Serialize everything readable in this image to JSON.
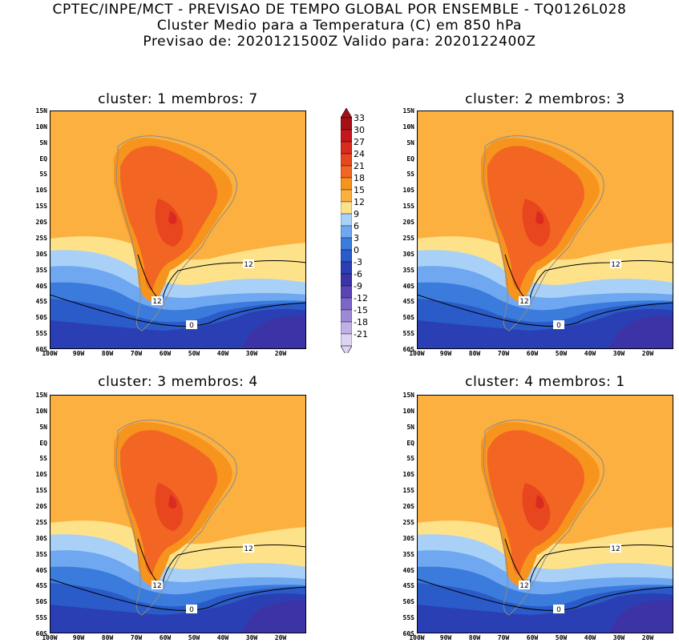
{
  "header": {
    "line1": "CPTEC/INPE/MCT - PREVISAO DE TEMPO GLOBAL POR ENSEMBLE - TQ0126L028",
    "line2": "Cluster Medio para a Temperatura (C) em 850 hPa",
    "line3": "Previsao de: 2020121500Z   Valido para: 2020122400Z"
  },
  "panels": [
    {
      "title": "cluster: 1   membros: 7",
      "contour_labels": [
        "12",
        "12",
        "0"
      ]
    },
    {
      "title": "cluster: 2   membros: 3",
      "contour_labels": [
        "12",
        "12",
        "0"
      ]
    },
    {
      "title": "cluster: 3   membros: 4",
      "contour_labels": [
        "12",
        "12",
        "0"
      ]
    },
    {
      "title": "cluster: 4   membros: 1",
      "contour_labels": [
        "12",
        "12",
        "0"
      ]
    }
  ],
  "lat_labels": [
    "15N",
    "10N",
    "5N",
    "EQ",
    "5S",
    "10S",
    "15S",
    "20S",
    "25S",
    "30S",
    "35S",
    "40S",
    "45S",
    "50S",
    "55S",
    "60S"
  ],
  "lon_labels": [
    "100W",
    "90W",
    "80W",
    "70W",
    "60W",
    "50W",
    "40W",
    "30W",
    "20W"
  ],
  "colorbar": {
    "labels": [
      "33",
      "30",
      "27",
      "24",
      "21",
      "18",
      "15",
      "12",
      "9",
      "6",
      "3",
      "0",
      "-3",
      "-6",
      "-9",
      "-12",
      "-15",
      "-18",
      "-21"
    ],
    "colors": [
      "#a50f15",
      "#c4161c",
      "#d92b1f",
      "#e8461e",
      "#f26522",
      "#f7941d",
      "#fbb040",
      "#fee28a",
      "#a9d1f7",
      "#6fa8f0",
      "#3a7bdc",
      "#2a5bc8",
      "#2b3fb4",
      "#3c34a6",
      "#5b45b6",
      "#7c66c8",
      "#9d8ad6",
      "#bfb0e6",
      "#ddd3f2"
    ]
  }
}
